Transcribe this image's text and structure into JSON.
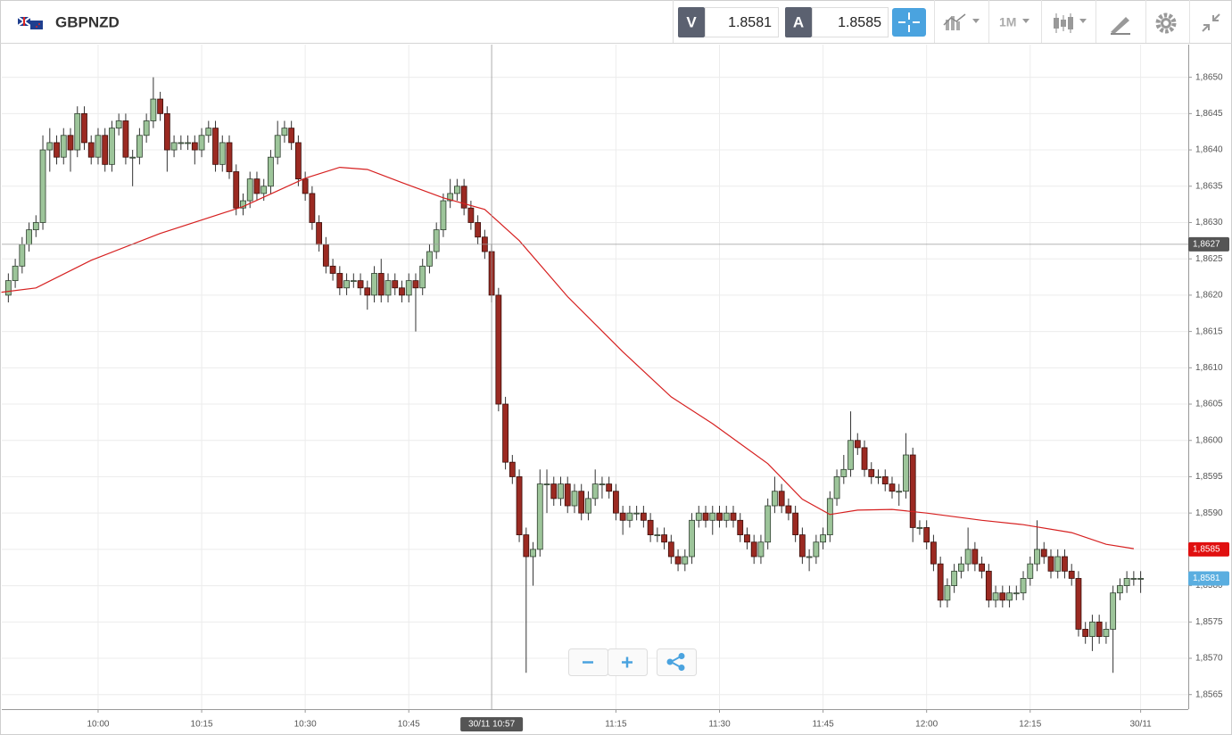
{
  "header": {
    "symbol": "GBPNZD",
    "bid_label": "V",
    "bid": "1.8581",
    "ask_label": "A",
    "ask": "1.8585",
    "timeframe": "1M"
  },
  "chart_data": {
    "type": "candlestick",
    "x": [
      587,
      588,
      589,
      590,
      591,
      592,
      593,
      594,
      595,
      596,
      597,
      598,
      599,
      600,
      601,
      602,
      603,
      604,
      605,
      606,
      607,
      608,
      609,
      610,
      611,
      612,
      613,
      614,
      615,
      616,
      617,
      618,
      619,
      620,
      621,
      622,
      623,
      624,
      625,
      626,
      627,
      628,
      629,
      630,
      631,
      632,
      633,
      634,
      635,
      636,
      637,
      638,
      639,
      640,
      641,
      642,
      643,
      644,
      645,
      646,
      647,
      648,
      649,
      650,
      651,
      652,
      653,
      654,
      655,
      656,
      657,
      658,
      659,
      660,
      661,
      662,
      663,
      664,
      665,
      666,
      667,
      668,
      669,
      670,
      671,
      672,
      673,
      674,
      675,
      676,
      677,
      678,
      679,
      680,
      681,
      682,
      683,
      684,
      685,
      686,
      687,
      688,
      689,
      690,
      691,
      692,
      693,
      694,
      695,
      696,
      697,
      698,
      699,
      700,
      701,
      702,
      703,
      704,
      705,
      706,
      707,
      708,
      709,
      710,
      711,
      712,
      713,
      714,
      715,
      716,
      717,
      718,
      719,
      720,
      721,
      722,
      723,
      724,
      725,
      726,
      727,
      728,
      729,
      730,
      731,
      732,
      733,
      734,
      735,
      736,
      737,
      738,
      739,
      740,
      741,
      742,
      743,
      744,
      745,
      746,
      747,
      748,
      749,
      750,
      751
    ],
    "open": [
      1.862,
      1.8622,
      1.8624,
      1.8627,
      1.8629,
      1.863,
      1.864,
      1.8641,
      1.8639,
      1.8642,
      1.864,
      1.8645,
      1.8641,
      1.8639,
      1.8642,
      1.8638,
      1.8643,
      1.8644,
      1.8639,
      1.8639,
      1.8642,
      1.8644,
      1.8647,
      1.8645,
      1.864,
      1.8641,
      1.8641,
      1.8641,
      1.864,
      1.8642,
      1.8643,
      1.8638,
      1.8641,
      1.8637,
      1.8632,
      1.8633,
      1.8636,
      1.8634,
      1.8635,
      1.8639,
      1.8642,
      1.8643,
      1.8641,
      1.8636,
      1.8634,
      1.863,
      1.8627,
      1.8624,
      1.8623,
      1.8621,
      1.8622,
      1.8622,
      1.8621,
      1.862,
      1.8623,
      1.862,
      1.8622,
      1.8621,
      1.862,
      1.8622,
      1.8621,
      1.8624,
      1.8626,
      1.8629,
      1.8633,
      1.8634,
      1.8635,
      1.8632,
      1.863,
      1.8628,
      1.8626,
      1.862,
      1.8605,
      1.8597,
      1.8595,
      1.8587,
      1.8584,
      1.8585,
      1.8594,
      1.8594,
      1.8592,
      1.8594,
      1.8591,
      1.8593,
      1.859,
      1.8592,
      1.8594,
      1.8594,
      1.8593,
      1.859,
      1.8589,
      1.859,
      1.859,
      1.8589,
      1.8587,
      1.8587,
      1.8586,
      1.8584,
      1.8583,
      1.8584,
      1.8589,
      1.859,
      1.8589,
      1.859,
      1.8589,
      1.859,
      1.8589,
      1.8587,
      1.8586,
      1.8584,
      1.8586,
      1.8591,
      1.8593,
      1.8591,
      1.859,
      1.8587,
      1.8584,
      1.8584,
      1.8586,
      1.8587,
      1.8592,
      1.8595,
      1.8596,
      1.86,
      1.8599,
      1.8596,
      1.8595,
      1.8595,
      1.8594,
      1.8593,
      1.8593,
      1.8598,
      1.8588,
      1.8588,
      1.8586,
      1.8583,
      1.8578,
      1.858,
      1.8582,
      1.8583,
      1.8585,
      1.8583,
      1.8582,
      1.8578,
      1.8579,
      1.8578,
      1.8579,
      1.8579,
      1.8581,
      1.8583,
      1.8585,
      1.8584,
      1.8582,
      1.8584,
      1.8582,
      1.8581,
      1.8574,
      1.8573,
      1.8575,
      1.8573,
      1.8574,
      1.8579,
      1.858,
      1.8581,
      1.8581
    ],
    "high": [
      1.8623,
      1.8625,
      1.8628,
      1.863,
      1.8631,
      1.8642,
      1.8643,
      1.8642,
      1.8643,
      1.8643,
      1.8646,
      1.8646,
      1.8642,
      1.8643,
      1.8643,
      1.8644,
      1.8645,
      1.8645,
      1.864,
      1.8643,
      1.8645,
      1.865,
      1.8648,
      1.8646,
      1.8642,
      1.8642,
      1.8642,
      1.8642,
      1.8643,
      1.8644,
      1.8644,
      1.8642,
      1.8642,
      1.8638,
      1.8634,
      1.8637,
      1.8637,
      1.8636,
      1.864,
      1.8644,
      1.8644,
      1.8644,
      1.8642,
      1.8637,
      1.8635,
      1.8631,
      1.8628,
      1.8625,
      1.8624,
      1.8623,
      1.8623,
      1.8623,
      1.8622,
      1.8624,
      1.8625,
      1.8623,
      1.8623,
      1.8622,
      1.8623,
      1.8623,
      1.8625,
      1.8627,
      1.863,
      1.8634,
      1.8636,
      1.8636,
      1.8636,
      1.8633,
      1.8631,
      1.8629,
      1.8627,
      1.8621,
      1.8606,
      1.8598,
      1.8596,
      1.8588,
      1.8586,
      1.8596,
      1.8596,
      1.8595,
      1.8595,
      1.8595,
      1.8594,
      1.8594,
      1.8593,
      1.8596,
      1.8595,
      1.8595,
      1.8594,
      1.8591,
      1.8591,
      1.8591,
      1.8591,
      1.859,
      1.8588,
      1.8588,
      1.8587,
      1.8585,
      1.8585,
      1.859,
      1.8591,
      1.8591,
      1.8591,
      1.8591,
      1.8591,
      1.8591,
      1.859,
      1.8588,
      1.8587,
      1.8587,
      1.8592,
      1.8595,
      1.8594,
      1.8592,
      1.8591,
      1.8588,
      1.8585,
      1.8587,
      1.8588,
      1.8593,
      1.8596,
      1.8598,
      1.8604,
      1.8601,
      1.86,
      1.8597,
      1.8596,
      1.8596,
      1.8595,
      1.8594,
      1.8601,
      1.8599,
      1.8589,
      1.8589,
      1.8587,
      1.8584,
      1.8581,
      1.8583,
      1.8584,
      1.8588,
      1.8586,
      1.8584,
      1.8583,
      1.858,
      1.858,
      1.858,
      1.858,
      1.8582,
      1.8584,
      1.8589,
      1.8586,
      1.8585,
      1.8585,
      1.8585,
      1.8583,
      1.8582,
      1.8575,
      1.8576,
      1.8576,
      1.8575,
      1.858,
      1.8581,
      1.8582,
      1.8582,
      1.8582
    ],
    "low": [
      1.8619,
      1.8621,
      1.8623,
      1.8626,
      1.8628,
      1.8629,
      1.8637,
      1.8638,
      1.8638,
      1.8637,
      1.8639,
      1.864,
      1.8638,
      1.8638,
      1.8637,
      1.8637,
      1.8642,
      1.8638,
      1.8635,
      1.8638,
      1.8641,
      1.8643,
      1.8644,
      1.8637,
      1.8639,
      1.864,
      1.864,
      1.8638,
      1.8639,
      1.8641,
      1.8637,
      1.8637,
      1.8636,
      1.8631,
      1.8631,
      1.8632,
      1.8633,
      1.8633,
      1.8634,
      1.8638,
      1.8641,
      1.864,
      1.8635,
      1.8633,
      1.8629,
      1.8626,
      1.8623,
      1.8622,
      1.862,
      1.862,
      1.8621,
      1.862,
      1.8618,
      1.8619,
      1.8619,
      1.8619,
      1.862,
      1.8619,
      1.8619,
      1.8615,
      1.862,
      1.8623,
      1.8625,
      1.8628,
      1.8632,
      1.8633,
      1.8631,
      1.8629,
      1.8627,
      1.8625,
      1.8619,
      1.8604,
      1.8596,
      1.8594,
      1.8586,
      1.8568,
      1.858,
      1.8584,
      1.859,
      1.8591,
      1.8591,
      1.859,
      1.859,
      1.8589,
      1.8589,
      1.8591,
      1.8592,
      1.8592,
      1.8589,
      1.8587,
      1.8588,
      1.8589,
      1.8588,
      1.8586,
      1.8586,
      1.8585,
      1.8583,
      1.8582,
      1.8582,
      1.8583,
      1.8588,
      1.8588,
      1.8587,
      1.8588,
      1.8588,
      1.8588,
      1.8586,
      1.8585,
      1.8583,
      1.8583,
      1.8585,
      1.859,
      1.859,
      1.8589,
      1.8586,
      1.8583,
      1.8582,
      1.8583,
      1.8585,
      1.8586,
      1.8591,
      1.8594,
      1.8595,
      1.8598,
      1.8595,
      1.8594,
      1.8594,
      1.8593,
      1.8592,
      1.8591,
      1.8592,
      1.8586,
      1.8587,
      1.8585,
      1.8582,
      1.8577,
      1.8577,
      1.8579,
      1.8581,
      1.8582,
      1.8582,
      1.8581,
      1.8577,
      1.8577,
      1.8577,
      1.8577,
      1.8578,
      1.8578,
      1.858,
      1.8582,
      1.8583,
      1.8581,
      1.8581,
      1.8581,
      1.858,
      1.8573,
      1.8572,
      1.8571,
      1.8572,
      1.8572,
      1.8568,
      1.8578,
      1.8579,
      1.858,
      1.8579
    ],
    "close": [
      1.8622,
      1.8624,
      1.8627,
      1.8629,
      1.863,
      1.864,
      1.8641,
      1.8639,
      1.8642,
      1.864,
      1.8645,
      1.8641,
      1.8639,
      1.8642,
      1.8638,
      1.8643,
      1.8644,
      1.8639,
      1.8639,
      1.8642,
      1.8644,
      1.8647,
      1.8645,
      1.864,
      1.8641,
      1.8641,
      1.8641,
      1.864,
      1.8642,
      1.8643,
      1.8638,
      1.8641,
      1.8637,
      1.8632,
      1.8633,
      1.8636,
      1.8634,
      1.8635,
      1.8639,
      1.8642,
      1.8643,
      1.8641,
      1.8636,
      1.8634,
      1.863,
      1.8627,
      1.8624,
      1.8623,
      1.8621,
      1.8622,
      1.8622,
      1.8621,
      1.862,
      1.8623,
      1.862,
      1.8622,
      1.8621,
      1.862,
      1.8622,
      1.8621,
      1.8624,
      1.8626,
      1.8629,
      1.8633,
      1.8634,
      1.8635,
      1.8632,
      1.863,
      1.8628,
      1.8626,
      1.862,
      1.8605,
      1.8597,
      1.8595,
      1.8587,
      1.8584,
      1.8585,
      1.8594,
      1.8594,
      1.8592,
      1.8594,
      1.8591,
      1.8593,
      1.859,
      1.8592,
      1.8594,
      1.8594,
      1.8593,
      1.859,
      1.8589,
      1.859,
      1.859,
      1.8589,
      1.8587,
      1.8587,
      1.8586,
      1.8584,
      1.8583,
      1.8584,
      1.8589,
      1.859,
      1.8589,
      1.859,
      1.8589,
      1.859,
      1.8589,
      1.8587,
      1.8586,
      1.8584,
      1.8586,
      1.8591,
      1.8593,
      1.8591,
      1.859,
      1.8587,
      1.8584,
      1.8584,
      1.8586,
      1.8587,
      1.8592,
      1.8595,
      1.8596,
      1.86,
      1.8599,
      1.8596,
      1.8595,
      1.8595,
      1.8594,
      1.8593,
      1.8593,
      1.8598,
      1.8588,
      1.8588,
      1.8586,
      1.8583,
      1.8578,
      1.858,
      1.8582,
      1.8583,
      1.8585,
      1.8583,
      1.8582,
      1.8578,
      1.8579,
      1.8578,
      1.8579,
      1.8579,
      1.8581,
      1.8583,
      1.8585,
      1.8584,
      1.8582,
      1.8584,
      1.8582,
      1.8581,
      1.8574,
      1.8573,
      1.8575,
      1.8573,
      1.8574,
      1.8579,
      1.858,
      1.8581,
      1.8581,
      1.8581
    ],
    "up_color": "#9dc59a",
    "down_color": "#9b2a22",
    "ma": {
      "color": "#d62020",
      "x": [
        586,
        591,
        599,
        609,
        621,
        630,
        635,
        639,
        644,
        650,
        656,
        661,
        668,
        676,
        683,
        689,
        697,
        702,
        706,
        710,
        715,
        720,
        728,
        734,
        741,
        746,
        750
      ],
      "values": [
        1.86204,
        1.8621,
        1.86248,
        1.86285,
        1.86322,
        1.86361,
        1.86376,
        1.86373,
        1.86355,
        1.86334,
        1.86318,
        1.86275,
        1.86198,
        1.86122,
        1.8606,
        1.86023,
        1.85968,
        1.85919,
        1.85898,
        1.85904,
        1.85905,
        1.859,
        1.8589,
        1.85884,
        1.85873,
        1.85857,
        1.85851
      ]
    },
    "xlim": [
      586.05,
      757.9
    ],
    "ylim": [
      1.8563,
      1.86545
    ],
    "grid": true,
    "xticks": [
      {
        "value": 600,
        "label": "10:00"
      },
      {
        "value": 615,
        "label": "10:15"
      },
      {
        "value": 630,
        "label": "10:30"
      },
      {
        "value": 645,
        "label": "10:45"
      },
      {
        "value": 675,
        "label": "11:15"
      },
      {
        "value": 690,
        "label": "11:30"
      },
      {
        "value": 705,
        "label": "11:45"
      },
      {
        "value": 720,
        "label": "12:00"
      },
      {
        "value": 735,
        "label": "12:15"
      },
      {
        "value": 751,
        "label": "30/11"
      }
    ],
    "yticks": [
      {
        "value": 1.8565,
        "label": "1,8565"
      },
      {
        "value": 1.857,
        "label": "1,8570"
      },
      {
        "value": 1.8575,
        "label": "1,8575"
      },
      {
        "value": 1.858,
        "label": "1,8580"
      },
      {
        "value": 1.8585,
        "label": "1,8585"
      },
      {
        "value": 1.859,
        "label": "1,8590"
      },
      {
        "value": 1.8595,
        "label": "1,8595"
      },
      {
        "value": 1.86,
        "label": "1,8600"
      },
      {
        "value": 1.8605,
        "label": "1,8605"
      },
      {
        "value": 1.861,
        "label": "1,8610"
      },
      {
        "value": 1.8615,
        "label": "1,8615"
      },
      {
        "value": 1.862,
        "label": "1,8620"
      },
      {
        "value": 1.8625,
        "label": "1,8625"
      },
      {
        "value": 1.863,
        "label": "1,8630"
      },
      {
        "value": 1.8635,
        "label": "1,8635"
      },
      {
        "value": 1.864,
        "label": "1,8640"
      },
      {
        "value": 1.8645,
        "label": "1,8645"
      },
      {
        "value": 1.865,
        "label": "1,8650"
      }
    ],
    "price_tags": [
      {
        "value": 1.8585,
        "label": "1,8585",
        "color": "#e01010"
      },
      {
        "value": 1.8581,
        "label": "1,8581",
        "color": "#5aaee0"
      }
    ],
    "crosshair": {
      "y": {
        "value": 1.8627,
        "label": "1,8627"
      },
      "x": {
        "value": 657,
        "label": "30/11 10:57"
      }
    }
  }
}
